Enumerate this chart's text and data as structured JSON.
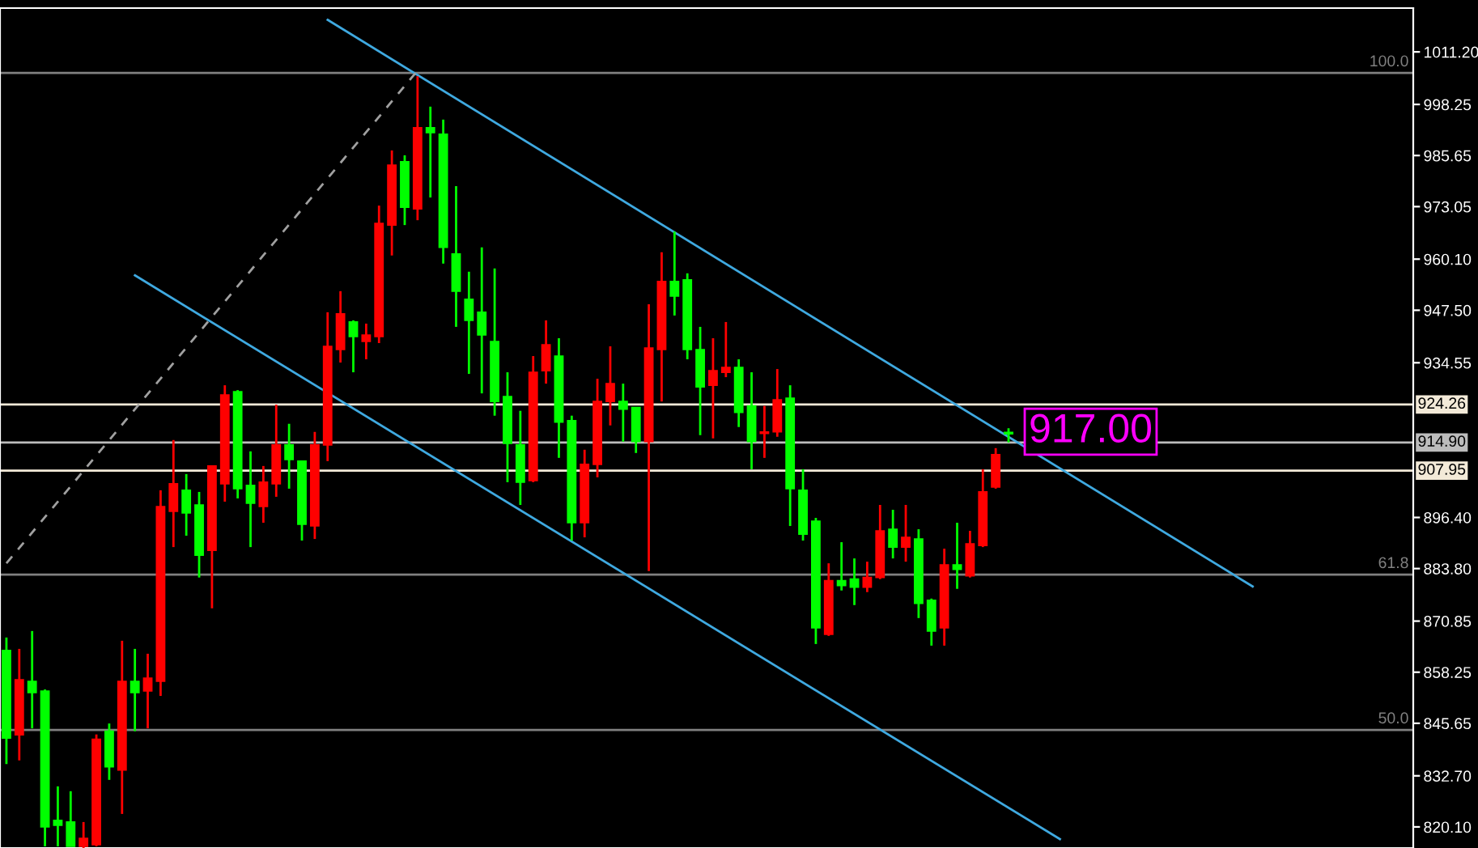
{
  "chart_data": {
    "type": "candlestick",
    "categories": [
      null,
      null,
      null,
      null,
      null,
      null,
      null,
      null,
      null,
      null,
      null,
      null,
      null,
      null,
      null,
      null,
      null,
      null,
      null,
      null,
      null,
      null,
      null,
      null,
      null,
      null,
      null,
      null,
      null,
      null,
      null,
      null,
      null,
      null,
      null,
      null,
      null,
      null,
      null,
      null,
      null,
      null,
      null,
      null,
      null,
      null,
      null,
      null,
      null,
      null,
      null,
      null,
      null,
      null,
      null,
      null,
      null,
      null,
      null,
      null,
      null,
      null,
      null,
      null,
      null,
      null,
      null,
      null,
      null,
      null,
      null,
      null,
      null,
      null,
      null,
      null,
      null,
      null,
      null,
      null,
      null,
      null,
      null,
      null,
      null,
      null,
      null,
      null,
      null,
      null,
      null,
      null,
      null,
      null,
      null,
      null,
      null,
      null,
      null,
      null,
      null,
      null,
      null,
      null,
      null,
      null,
      null,
      null,
      null,
      null
    ],
    "ohlc": [
      [
        863.6,
        866.8,
        835.6,
        842.0
      ],
      [
        842.8,
        864.0,
        836.5,
        856.4
      ],
      [
        856.0,
        868.4,
        844.4,
        853.2
      ],
      [
        853.6,
        854.0,
        815.3,
        820.1
      ],
      [
        821.7,
        830.1,
        815.3,
        820.5
      ],
      [
        821.3,
        828.9,
        815.3,
        815.3
      ],
      [
        815.3,
        821.3,
        814.9,
        817.3
      ],
      [
        815.7,
        842.9,
        815.3,
        841.7
      ],
      [
        843.7,
        845.6,
        831.7,
        834.9
      ],
      [
        834.1,
        866.0,
        823.3,
        856.0
      ],
      [
        856.0,
        864.0,
        843.7,
        853.2
      ],
      [
        853.6,
        862.8,
        844.4,
        856.8
      ],
      [
        856.0,
        903.1,
        852.4,
        899.1
      ],
      [
        897.9,
        915.5,
        889.1,
        904.7
      ],
      [
        903.1,
        907.1,
        891.9,
        897.5
      ],
      [
        899.5,
        902.7,
        881.6,
        887.1
      ],
      [
        888.3,
        909.1,
        874.0,
        909.1
      ],
      [
        904.7,
        929.0,
        900.3,
        926.6
      ],
      [
        927.4,
        927.8,
        901.1,
        903.5
      ],
      [
        904.3,
        912.7,
        889.1,
        899.9
      ],
      [
        899.1,
        909.1,
        895.1,
        905.1
      ],
      [
        904.7,
        924.2,
        901.5,
        914.3
      ],
      [
        914.3,
        919.5,
        903.5,
        910.7
      ],
      [
        910.3,
        910.3,
        890.7,
        894.7
      ],
      [
        894.3,
        917.5,
        891.1,
        914.3
      ],
      [
        914.3,
        947.0,
        910.3,
        938.6
      ],
      [
        937.8,
        952.2,
        934.6,
        946.6
      ],
      [
        944.6,
        945.0,
        932.2,
        941.0
      ],
      [
        939.8,
        944.2,
        935.4,
        941.4
      ],
      [
        941.0,
        973.3,
        939.4,
        968.9
      ],
      [
        968.5,
        986.9,
        961.0,
        983.3
      ],
      [
        984.1,
        985.7,
        968.5,
        972.9
      ],
      [
        972.5,
        1005.2,
        969.7,
        992.5
      ],
      [
        992.5,
        997.7,
        975.3,
        991.3
      ],
      [
        990.9,
        994.5,
        959.0,
        963.0
      ],
      [
        961.4,
        978.1,
        943.4,
        952.2
      ],
      [
        950.2,
        957.0,
        931.8,
        945.0
      ],
      [
        947.0,
        963.0,
        927.0,
        941.4
      ],
      [
        939.8,
        957.8,
        921.5,
        925.0
      ],
      [
        926.2,
        932.2,
        905.1,
        914.7
      ],
      [
        914.3,
        922.7,
        899.5,
        905.1
      ],
      [
        905.5,
        936.2,
        905.1,
        932.2
      ],
      [
        932.6,
        945.0,
        929.4,
        939.0
      ],
      [
        936.2,
        940.6,
        911.1,
        919.9
      ],
      [
        920.3,
        921.5,
        890.7,
        895.1
      ],
      [
        895.1,
        913.1,
        891.5,
        909.5
      ],
      [
        909.5,
        930.6,
        906.3,
        925.0
      ],
      [
        925.0,
        938.6,
        919.1,
        929.4
      ],
      [
        925.0,
        929.4,
        915.1,
        923.1
      ],
      [
        923.5,
        923.5,
        912.3,
        915.1
      ],
      [
        915.1,
        949.0,
        883.2,
        938.2
      ],
      [
        937.8,
        961.8,
        925.0,
        954.6
      ],
      [
        954.6,
        966.9,
        946.2,
        951.0
      ],
      [
        955.0,
        956.6,
        935.4,
        937.8
      ],
      [
        937.8,
        943.4,
        916.7,
        928.6
      ],
      [
        929.0,
        940.6,
        915.9,
        932.6
      ],
      [
        932.2,
        944.6,
        931.0,
        933.4
      ],
      [
        933.4,
        935.4,
        918.7,
        922.3
      ],
      [
        923.9,
        932.2,
        908.3,
        915.1
      ],
      [
        917.1,
        923.9,
        911.1,
        917.5
      ],
      [
        917.5,
        933.0,
        916.3,
        925.4
      ],
      [
        925.8,
        929.0,
        894.3,
        903.5
      ],
      [
        903.1,
        908.3,
        890.7,
        892.3
      ],
      [
        895.5,
        896.3,
        865.2,
        869.2
      ],
      [
        867.6,
        885.1,
        867.2,
        880.8
      ],
      [
        880.8,
        890.3,
        878.4,
        879.6
      ],
      [
        881.2,
        886.3,
        874.8,
        879.2
      ],
      [
        879.2,
        885.5,
        878.0,
        881.6
      ],
      [
        881.6,
        899.5,
        881.2,
        893.1
      ],
      [
        893.5,
        898.3,
        886.3,
        889.1
      ],
      [
        889.1,
        899.5,
        885.5,
        891.5
      ],
      [
        891.1,
        893.5,
        871.6,
        875.2
      ],
      [
        876.0,
        876.4,
        864.8,
        868.4
      ],
      [
        869.2,
        888.7,
        864.8,
        884.7
      ],
      [
        884.7,
        895.1,
        878.8,
        883.6
      ],
      [
        882.0,
        893.1,
        881.6,
        889.9
      ],
      [
        889.5,
        908.3,
        889.1,
        902.7
      ],
      [
        903.9,
        913.5,
        903.5,
        911.9
      ],
      [
        917.4,
        918.4,
        914.9,
        917.0
      ],
      null,
      null,
      null,
      null,
      null,
      null,
      null,
      null,
      null,
      null,
      null,
      null,
      null,
      null,
      null,
      null,
      null,
      null,
      null,
      null,
      null,
      null,
      null,
      null,
      null,
      null,
      null,
      null,
      null,
      null,
      null
    ],
    "colors": [
      "#00ff00",
      "#ff0000",
      "#00ff00",
      "#00ff00",
      "#00ff00",
      "#00ff00",
      "#ff0000",
      "#ff0000",
      "#00ff00",
      "#ff0000",
      "#00ff00",
      "#ff0000",
      "#ff0000",
      "#ff0000",
      "#00ff00",
      "#00ff00",
      "#ff0000",
      "#ff0000",
      "#00ff00",
      "#00ff00",
      "#ff0000",
      "#ff0000",
      "#00ff00",
      "#00ff00",
      "#ff0000",
      "#ff0000",
      "#ff0000",
      "#00ff00",
      "#ff0000",
      "#ff0000",
      "#ff0000",
      "#00ff00",
      "#ff0000",
      "#00ff00",
      "#00ff00",
      "#00ff00",
      "#00ff00",
      "#00ff00",
      "#00ff00",
      "#00ff00",
      "#00ff00",
      "#ff0000",
      "#ff0000",
      "#00ff00",
      "#00ff00",
      "#ff0000",
      "#ff0000",
      "#ff0000",
      "#00ff00",
      "#00ff00",
      "#ff0000",
      "#ff0000",
      "#00ff00",
      "#00ff00",
      "#00ff00",
      "#ff0000",
      "#ff0000",
      "#00ff00",
      "#00ff00",
      "#ff0000",
      "#ff0000",
      "#00ff00",
      "#00ff00",
      "#00ff00",
      "#ff0000",
      "#00ff00",
      "#00ff00",
      "#ff0000",
      "#ff0000",
      "#00ff00",
      "#ff0000",
      "#00ff00",
      "#00ff00",
      "#ff0000",
      "#00ff00",
      "#ff0000",
      "#ff0000",
      "#ff0000",
      "#00ff00",
      null,
      null,
      null,
      null,
      null,
      null,
      null,
      null,
      null,
      null,
      null,
      null,
      null,
      null,
      null,
      null,
      null,
      null,
      null,
      null,
      null,
      null,
      null,
      null,
      null,
      null,
      null,
      null,
      null,
      null,
      null
    ],
    "series": [
      {
        "type": "line",
        "color": "#3fa9e0",
        "line_style": "solid",
        "values": [
          null,
          null,
          null,
          null,
          null,
          null,
          null,
          null,
          null,
          null,
          null,
          null,
          null,
          null,
          null,
          null,
          null,
          null,
          null,
          null,
          null,
          null,
          null,
          null,
          null,
          1019.1,
          null,
          null,
          null,
          null,
          null,
          null,
          null,
          null,
          null,
          null,
          null,
          null,
          null,
          null,
          null,
          null,
          null,
          null,
          null,
          null,
          null,
          null,
          null,
          null,
          null,
          null,
          null,
          null,
          null,
          null,
          null,
          null,
          null,
          null,
          null,
          null,
          null,
          null,
          null,
          null,
          null,
          null,
          null,
          null,
          null,
          null,
          null,
          null,
          null,
          null,
          null,
          null,
          null,
          null,
          null,
          null,
          null,
          null,
          null,
          null,
          null,
          null,
          null,
          null,
          null,
          null,
          null,
          null,
          null,
          null,
          null,
          879.4,
          null,
          null,
          null,
          null,
          null,
          null,
          null,
          null,
          null,
          null,
          null,
          null
        ]
      },
      {
        "type": "line",
        "color": "#3fa9e0",
        "line_style": "solid",
        "values": [
          null,
          null,
          null,
          null,
          null,
          null,
          null,
          null,
          null,
          null,
          956.1,
          null,
          null,
          null,
          null,
          null,
          null,
          null,
          null,
          null,
          null,
          null,
          null,
          null,
          null,
          null,
          null,
          null,
          null,
          null,
          null,
          null,
          null,
          null,
          null,
          null,
          null,
          null,
          null,
          null,
          null,
          null,
          null,
          null,
          null,
          null,
          null,
          null,
          null,
          null,
          null,
          null,
          null,
          null,
          null,
          null,
          null,
          null,
          null,
          null,
          null,
          null,
          null,
          null,
          null,
          null,
          null,
          null,
          null,
          null,
          null,
          null,
          null,
          null,
          null,
          null,
          null,
          null,
          null,
          null,
          null,
          null,
          817.1,
          null,
          null,
          null,
          null,
          null,
          null,
          null,
          null,
          null,
          null,
          null,
          null,
          null,
          null,
          null,
          null,
          null,
          null,
          null,
          null,
          null,
          null,
          null,
          null,
          null,
          null,
          null
        ]
      },
      {
        "type": "line",
        "color": "#a0a0a0",
        "line_style": "dashed",
        "values": [
          885.1,
          null,
          null,
          null,
          null,
          null,
          null,
          null,
          null,
          null,
          null,
          null,
          null,
          null,
          null,
          null,
          null,
          null,
          null,
          null,
          null,
          null,
          null,
          null,
          null,
          null,
          null,
          null,
          null,
          null,
          null,
          null,
          1006.6,
          null,
          null,
          null,
          null,
          null,
          null,
          null,
          null,
          null,
          null,
          null,
          null,
          null,
          null,
          null,
          null,
          null,
          null,
          null,
          null,
          null,
          null,
          null,
          null,
          null,
          null,
          null,
          null,
          null,
          null,
          null,
          null,
          null,
          null,
          null,
          null,
          null,
          null,
          null,
          null,
          null,
          null,
          null,
          null,
          null,
          null,
          null,
          null,
          null,
          null,
          null,
          null,
          null,
          null,
          null,
          null,
          null,
          null,
          null,
          null,
          null,
          null,
          null,
          null,
          null,
          null,
          null,
          null,
          null,
          null,
          null,
          null,
          null,
          null,
          null,
          null,
          null
        ]
      }
    ],
    "ylim": [
      814.9,
      1022.0
    ],
    "yticks": [
      {
        "value": 1011.2,
        "label": "1011.20"
      },
      {
        "value": 998.25,
        "label": "998.25"
      },
      {
        "value": 985.65,
        "label": "985.65"
      },
      {
        "value": 973.05,
        "label": "973.05"
      },
      {
        "value": 960.1,
        "label": "960.10"
      },
      {
        "value": 947.5,
        "label": "947.50"
      },
      {
        "value": 934.55,
        "label": "934.55"
      },
      {
        "value": 896.4,
        "label": "896.40"
      },
      {
        "value": 883.8,
        "label": "883.80"
      },
      {
        "value": 870.85,
        "label": "870.85"
      },
      {
        "value": 858.25,
        "label": "858.25"
      },
      {
        "value": 845.65,
        "label": "845.65"
      },
      {
        "value": 832.7,
        "label": "832.70"
      },
      {
        "value": 820.1,
        "label": "820.10"
      }
    ],
    "ref_lines": [
      {
        "axis": "y",
        "value": 1006.0,
        "color": "#808080"
      },
      {
        "axis": "y",
        "value": 924.26,
        "label": "924.26",
        "color": "#f3ead8"
      },
      {
        "axis": "y",
        "value": 914.9,
        "label": "914.90",
        "color": "#bcbcbc"
      },
      {
        "axis": "y",
        "value": 907.95,
        "label": "907.95",
        "color": "#f3ead8"
      },
      {
        "axis": "y",
        "value": 882.3,
        "color": "#808080"
      },
      {
        "axis": "y",
        "value": 844.0,
        "color": "#808080"
      }
    ],
    "annotations": [
      {
        "text": "100.0",
        "y": 1006.0
      },
      {
        "text": "61.8",
        "y": 882.3
      },
      {
        "text": "50.0",
        "y": 844.0
      },
      "917.00"
    ],
    "grid": false,
    "legend": false,
    "tick_labels": "y"
  }
}
